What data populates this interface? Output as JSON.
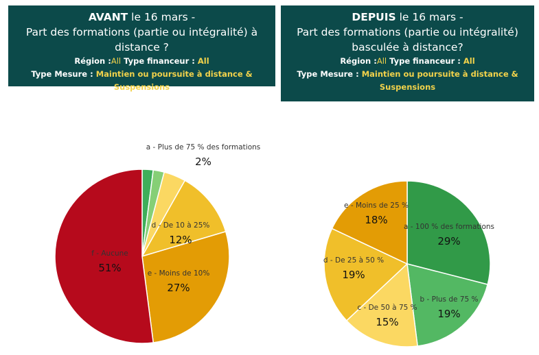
{
  "left_header": {
    "bold": "AVANT",
    "line1_rest": " le 16 mars -",
    "line2": "Part des formations (partie ou intégralité) à",
    "line3": "distance ?",
    "region_label": "Région :",
    "region_value": "All",
    "financeur_label": " Type financeur : ",
    "financeur_value": "All",
    "mesure_label": "Type Mesure : ",
    "mesure_value": "Maintien ou poursuite à distance & Suspensions"
  },
  "right_header": {
    "bold": "DEPUIS",
    "line1_rest": " le 16 mars -",
    "line2": "Part des formations (partie ou intégralité)",
    "line3": "basculée à distance?",
    "region_label": "Région :",
    "region_value": "All",
    "financeur_label": " Type financeur : ",
    "financeur_value": "All",
    "mesure_label": "Type Mesure : ",
    "mesure_value1": "Maintien ou poursuite à distance &",
    "mesure_value2": "Suspensions"
  },
  "chart_data": [
    {
      "type": "pie",
      "title": "",
      "slices": [
        {
          "label": "a - Plus de 75 % des formations",
          "pct_label": "2%",
          "value": 2,
          "color": "#3fae5a"
        },
        {
          "label": "",
          "pct_label": "",
          "value": 2,
          "color": "#86cf76"
        },
        {
          "label": "",
          "pct_label": "",
          "value": 4,
          "color": "#fbd862"
        },
        {
          "label": "d - De 10 à 25%",
          "pct_label": "12%",
          "value": 12,
          "color": "#f0bf2a"
        },
        {
          "label": "e - Moins de 10%",
          "pct_label": "27%",
          "value": 27,
          "color": "#e39c05"
        },
        {
          "label": "f - Aucune",
          "pct_label": "51%",
          "value": 51,
          "color": "#b60a1c"
        }
      ]
    },
    {
      "type": "pie",
      "title": "",
      "slices": [
        {
          "label": "a - 100 % des formations",
          "pct_label": "29%",
          "value": 29,
          "color": "#319a48"
        },
        {
          "label": "b - Plus de 75 %",
          "pct_label": "19%",
          "value": 19,
          "color": "#53b863"
        },
        {
          "label": "c - De 50 à 75 %",
          "pct_label": "15%",
          "value": 15,
          "color": "#fbd862"
        },
        {
          "label": "d - De 25 à 50 %",
          "pct_label": "19%",
          "value": 19,
          "color": "#f0bf2a"
        },
        {
          "label": "e - Moins de 25 %",
          "pct_label": "18%",
          "value": 18,
          "color": "#e39c05"
        }
      ]
    }
  ]
}
